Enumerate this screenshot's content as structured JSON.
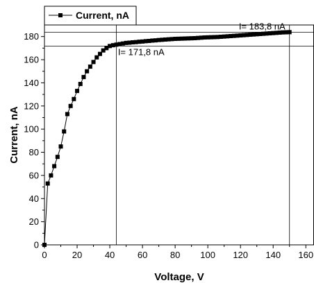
{
  "chart_data": {
    "type": "line",
    "xlabel": "Voltage, V",
    "ylabel": "Current, nA",
    "xlim": [
      0,
      165
    ],
    "ylim": [
      0,
      190
    ],
    "xticks": [
      0,
      20,
      40,
      60,
      80,
      100,
      120,
      140,
      160
    ],
    "yticks": [
      0,
      20,
      40,
      60,
      80,
      100,
      120,
      140,
      160,
      180
    ],
    "legend": {
      "position": "top-left",
      "entries": [
        "Current, nA"
      ]
    },
    "grid": false,
    "marker": "square",
    "series": [
      {
        "name": "Current, nA",
        "x": [
          0,
          2,
          4,
          6,
          8,
          10,
          12,
          14,
          16,
          18,
          20,
          22,
          24,
          26,
          28,
          30,
          32,
          34,
          36,
          38,
          40,
          42,
          44,
          46,
          48,
          50,
          52,
          54,
          56,
          58,
          60,
          62,
          64,
          66,
          68,
          70,
          72,
          74,
          76,
          78,
          80,
          82,
          84,
          86,
          88,
          90,
          92,
          94,
          96,
          98,
          100,
          102,
          104,
          106,
          108,
          110,
          112,
          114,
          116,
          118,
          120,
          122,
          124,
          126,
          128,
          130,
          132,
          134,
          136,
          138,
          140,
          142,
          144,
          146,
          148,
          150
        ],
        "y": [
          0,
          53,
          60,
          68,
          76,
          85,
          98,
          113,
          120,
          126,
          133,
          139,
          145,
          150,
          154,
          158,
          162,
          165,
          168,
          170,
          171.8,
          172.5,
          173,
          173.5,
          174,
          174.5,
          174.7,
          175,
          175.2,
          175.5,
          175.7,
          176,
          176.2,
          176.5,
          176.7,
          177,
          177.2,
          177.4,
          177.6,
          177.8,
          178,
          178.1,
          178.2,
          178.3,
          178.4,
          178.5,
          178.6,
          178.8,
          179,
          179.2,
          179.3,
          179.4,
          179.5,
          179.6,
          179.8,
          180,
          180.2,
          180.4,
          180.6,
          180.8,
          181,
          181.2,
          181.4,
          181.6,
          181.8,
          182,
          182.2,
          182.4,
          182.6,
          182.8,
          183,
          183.2,
          183.4,
          183.6,
          183.7,
          183.8
        ]
      }
    ],
    "reference_lines": [
      {
        "axis": "x",
        "value": 44
      },
      {
        "axis": "y",
        "value": 171.8
      },
      {
        "axis": "x",
        "value": 150
      },
      {
        "axis": "y",
        "value": 183.8
      }
    ],
    "annotations": [
      {
        "text": "I= 171,8 nA",
        "x": 45,
        "y": 164
      },
      {
        "text": "I= 183,8 nA",
        "x": 119,
        "y": 186
      }
    ]
  }
}
